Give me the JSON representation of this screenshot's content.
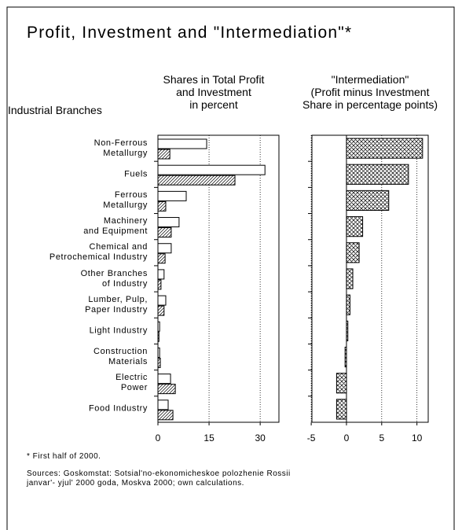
{
  "title": "Profit, Investment and \"Intermediation\"*",
  "row_header": "Industrial Branches",
  "footnote": "* First half of 2000.",
  "sources": "Sources: Goskomstat: Sotsial'no-ekonomicheskoe polozhenie Rossii\njanvar'- yjul' 2000 goda, Moskva 2000; own calculations.",
  "chart_data": [
    {
      "type": "barh",
      "title": "Shares in Total Profit\nand Investment\nin percent",
      "categories": [
        "Non-Ferrous\nMetallurgy",
        "Fuels",
        "Ferrous\nMetallurgy",
        "Machinery\nand Equipment",
        "Chemical and\nPetrochemical Industry",
        "Other Branches\nof Industry",
        "Lumber, Pulp,\nPaper Industry",
        "Light Industry",
        "Construction\nMaterials",
        "Electric\nPower",
        "Food Industry"
      ],
      "series": [
        {
          "color": "#ffffff",
          "pattern": "none",
          "values": [
            14.3,
            31.4,
            8.3,
            6.2,
            3.9,
            1.8,
            2.3,
            0.5,
            0.5,
            3.7,
            3.0
          ]
        },
        {
          "color": "#ffffff",
          "pattern": "hatch",
          "values": [
            3.5,
            22.6,
            2.3,
            3.9,
            2.1,
            0.9,
            1.8,
            0.3,
            0.7,
            5.1,
            4.4
          ]
        }
      ],
      "xlim": [
        0,
        35.5
      ],
      "xticks": [
        0,
        15,
        30
      ],
      "grid": true
    },
    {
      "type": "barh",
      "title": "\"Intermediation\"\n(Profit minus Investment\nShare in percentage points)",
      "series": [
        {
          "color": "#ffffff",
          "pattern": "crosshatch",
          "values": [
            10.8,
            8.8,
            6.0,
            2.3,
            1.8,
            0.9,
            0.5,
            0.2,
            -0.2,
            -1.4,
            -1.4
          ]
        }
      ],
      "xlim": [
        -4.9,
        11.6
      ],
      "xticks": [
        -5,
        0,
        5,
        10
      ],
      "grid": true
    }
  ]
}
